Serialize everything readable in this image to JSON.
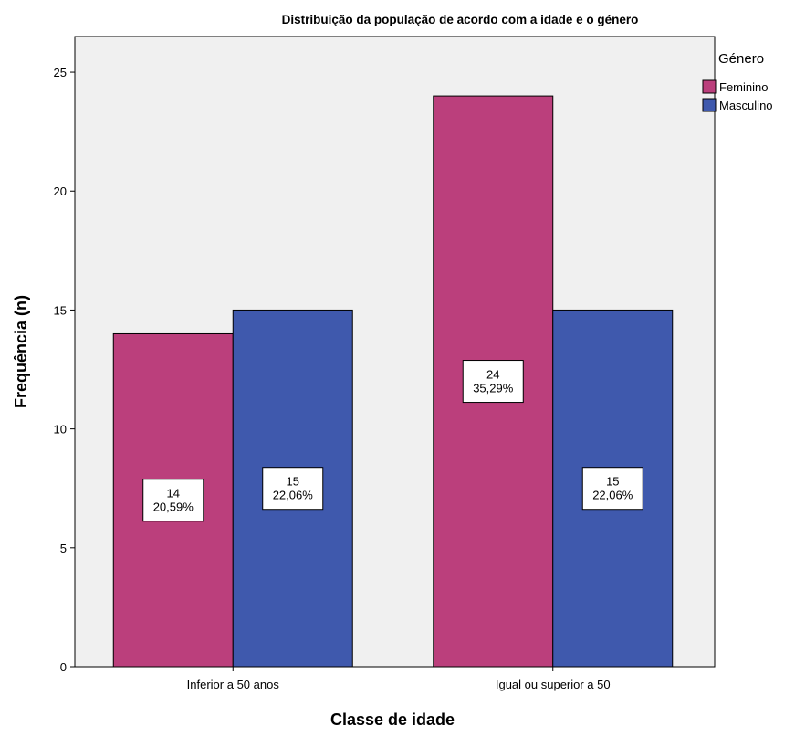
{
  "chart_data": {
    "type": "bar",
    "title": "Distribuição da população de acordo com a idade e o género",
    "xlabel": "Classe de idade",
    "ylabel": "Frequência (n)",
    "categories": [
      "Inferior a 50 anos",
      "Igual ou superior a 50"
    ],
    "ylim": [
      0,
      26.5
    ],
    "yticks": [
      "0",
      "5",
      "10",
      "15",
      "20",
      "25"
    ],
    "legend": {
      "title": "Género",
      "placement": "right"
    },
    "grid": false,
    "series": [
      {
        "name": "Feminino",
        "color": "#bb3f7c",
        "values": [
          14,
          24
        ],
        "labels": [
          {
            "count": "14",
            "percent": "20,59%"
          },
          {
            "count": "24",
            "percent": "35,29%"
          }
        ]
      },
      {
        "name": "Masculino",
        "color": "#3f59ad",
        "values": [
          15,
          15
        ],
        "labels": [
          {
            "count": "15",
            "percent": "22,06%"
          },
          {
            "count": "15",
            "percent": "22,06%"
          }
        ]
      }
    ],
    "plot_background": "#f0f0f0"
  }
}
